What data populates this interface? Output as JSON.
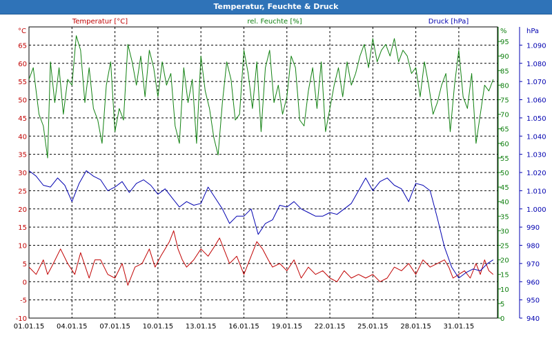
{
  "window": {
    "title": "Temperatur, Feuchte & Druck"
  },
  "chart_data": {
    "type": "line",
    "colors": {
      "temperature": "#c00000",
      "humidity": "#108010",
      "pressure": "#0000b0",
      "grid": "#000000"
    },
    "x_tick_labels": [
      "01.01.15",
      "04.01.15",
      "07.01.15",
      "10.01.15",
      "13.01.15",
      "16.01.15",
      "19.01.15",
      "22.01.15",
      "25.01.15",
      "28.01.15",
      "31.01.15"
    ],
    "x_range_days": [
      0,
      32.7
    ],
    "grid": true,
    "axes": {
      "temperature": {
        "label": "Temperatur [°C]",
        "unit": "°C",
        "ylim": [
          -10,
          70
        ],
        "ticks": [
          -10,
          -5,
          0,
          5,
          10,
          15,
          20,
          25,
          30,
          35,
          40,
          45,
          50,
          55,
          60,
          65
        ],
        "tick_labels": [
          "-10",
          "-5",
          "0",
          "5",
          "10",
          "15",
          "20",
          "25",
          "30",
          "35",
          "40",
          "45",
          "50",
          "55",
          "60",
          "65"
        ]
      },
      "humidity": {
        "label": "rel. Feuchte [%]",
        "unit": "%",
        "ylim": [
          0,
          100
        ],
        "ticks": [
          0,
          5,
          10,
          15,
          20,
          25,
          30,
          35,
          40,
          45,
          50,
          55,
          60,
          65,
          70,
          75,
          80,
          85,
          90,
          95
        ],
        "tick_labels": [
          "0",
          "5",
          "10",
          "15",
          "20",
          "25",
          "30",
          "35",
          "40",
          "45",
          "50",
          "55",
          "60",
          "65",
          "70",
          "75",
          "80",
          "85",
          "90",
          "95"
        ]
      },
      "pressure": {
        "label": "",
        "unit": "hPa",
        "ylim": [
          940,
          1100
        ],
        "ticks": [
          940,
          950,
          960,
          970,
          980,
          990,
          1000,
          1010,
          1020,
          1030,
          1040,
          1050,
          1060,
          1070,
          1080,
          1090
        ],
        "tick_labels": [
          "940",
          "950",
          "960",
          "970",
          "980",
          "990",
          "1.000",
          "1.010",
          "1.020",
          "1.030",
          "1.040",
          "1.050",
          "1.060",
          "1.070",
          "1.080",
          "1.090"
        ]
      }
    },
    "series": [
      {
        "name": "Temperatur [°C]",
        "axis": "temperature",
        "x": [
          0,
          0.5,
          1,
          1.3,
          1.7,
          2.2,
          2.7,
          3.2,
          3.6,
          4.2,
          4.6,
          5,
          5.5,
          6,
          6.5,
          6.9,
          7.4,
          7.9,
          8.4,
          8.8,
          9.2,
          9.5,
          9.8,
          10.1,
          10.4,
          10.7,
          11,
          11.5,
          12,
          12.5,
          13,
          13.3,
          13.6,
          14,
          14.5,
          15,
          15.5,
          15.9,
          16.3,
          16.7,
          17,
          17.5,
          18,
          18.5,
          19,
          19.5,
          20,
          20.5,
          21,
          21.5,
          22,
          22.5,
          23,
          23.5,
          24,
          24.5,
          25,
          25.5,
          26,
          26.5,
          27,
          27.5,
          28,
          28.5,
          29,
          29.3,
          29.6,
          30,
          30.4,
          30.8,
          31.2,
          31.5,
          31.8,
          32.1,
          32.4
        ],
        "y": [
          4,
          2,
          6,
          2,
          5,
          9,
          5,
          2,
          8,
          1,
          6,
          6,
          2,
          1,
          5,
          -1,
          4,
          5,
          9,
          4,
          7,
          9,
          11,
          14,
          9,
          6,
          4,
          6,
          9,
          7,
          10,
          12,
          9,
          5,
          7,
          2,
          7,
          11,
          9,
          6,
          4,
          5,
          3,
          6,
          1,
          4,
          2,
          3,
          1,
          0,
          3,
          1,
          2,
          1,
          2,
          0,
          1,
          4,
          3,
          5,
          2,
          6,
          4,
          5,
          6,
          4,
          1,
          2,
          3,
          1,
          5,
          2,
          6,
          3,
          2
        ]
      },
      {
        "name": "rel. Feuchte [%]",
        "axis": "humidity",
        "x": [
          0,
          0.3,
          0.7,
          1,
          1.3,
          1.5,
          1.8,
          2.1,
          2.4,
          2.7,
          3,
          3.3,
          3.6,
          3.9,
          4.2,
          4.5,
          4.8,
          5.1,
          5.4,
          5.7,
          6,
          6.3,
          6.6,
          6.9,
          7.2,
          7.5,
          7.8,
          8.1,
          8.4,
          8.7,
          9,
          9.3,
          9.6,
          9.9,
          10.2,
          10.5,
          10.8,
          11.1,
          11.4,
          11.7,
          12,
          12.3,
          12.6,
          12.9,
          13.2,
          13.5,
          13.8,
          14.1,
          14.4,
          14.7,
          15,
          15.3,
          15.6,
          15.9,
          16.2,
          16.5,
          16.8,
          17.1,
          17.4,
          17.7,
          18,
          18.3,
          18.6,
          18.9,
          19.2,
          19.5,
          19.8,
          20.1,
          20.4,
          20.7,
          21,
          21.3,
          21.6,
          21.9,
          22.2,
          22.5,
          22.8,
          23.1,
          23.4,
          23.7,
          24,
          24.3,
          24.6,
          24.9,
          25.2,
          25.5,
          25.8,
          26.1,
          26.4,
          26.7,
          27,
          27.3,
          27.6,
          27.9,
          28.2,
          28.5,
          28.8,
          29.1,
          29.4,
          29.7,
          30,
          30.3,
          30.6,
          30.9,
          31.2,
          31.5,
          31.8,
          32.1,
          32.4
        ],
        "y": [
          82,
          86,
          70,
          66,
          55,
          88,
          74,
          86,
          70,
          82,
          80,
          97,
          92,
          74,
          86,
          72,
          68,
          60,
          80,
          88,
          64,
          72,
          68,
          94,
          88,
          80,
          90,
          76,
          92,
          86,
          76,
          88,
          80,
          84,
          66,
          60,
          86,
          74,
          82,
          60,
          90,
          78,
          72,
          62,
          56,
          74,
          88,
          82,
          68,
          70,
          92,
          84,
          72,
          88,
          64,
          86,
          92,
          74,
          80,
          70,
          76,
          90,
          86,
          68,
          66,
          78,
          86,
          72,
          88,
          64,
          72,
          80,
          86,
          76,
          88,
          80,
          84,
          90,
          94,
          86,
          96,
          88,
          92,
          94,
          90,
          96,
          88,
          92,
          90,
          84,
          86,
          76,
          88,
          80,
          70,
          74,
          80,
          84,
          64,
          80,
          92,
          76,
          72,
          84,
          60,
          70,
          80,
          78,
          82
        ]
      },
      {
        "name": "Druck [hPa]",
        "axis": "pressure",
        "x": [
          0,
          0.5,
          1,
          1.5,
          2,
          2.5,
          3,
          3.5,
          4,
          4.5,
          5,
          5.5,
          6,
          6.5,
          7,
          7.5,
          8,
          8.5,
          9,
          9.5,
          10,
          10.5,
          11,
          11.5,
          12,
          12.5,
          13,
          13.5,
          14,
          14.5,
          15,
          15.5,
          16,
          16.5,
          17,
          17.5,
          18,
          18.5,
          19,
          19.5,
          20,
          20.5,
          21,
          21.5,
          22,
          22.5,
          23,
          23.5,
          24,
          24.5,
          25,
          25.5,
          26,
          26.5,
          27,
          27.5,
          28,
          28.5,
          29,
          29.5,
          30,
          30.5,
          31,
          31.5,
          32,
          32.4
        ],
        "y": [
          1021,
          1018,
          1013,
          1012,
          1017,
          1013,
          1004,
          1014,
          1021,
          1018,
          1016,
          1010,
          1012,
          1015,
          1009,
          1014,
          1016,
          1013,
          1008,
          1011,
          1006,
          1001,
          1004,
          1002,
          1003,
          1012,
          1006,
          1000,
          992,
          996,
          996,
          1000,
          986,
          992,
          994,
          1002,
          1001,
          1004,
          1000,
          998,
          996,
          996,
          998,
          997,
          1000,
          1003,
          1010,
          1017,
          1010,
          1015,
          1017,
          1013,
          1011,
          1004,
          1014,
          1013,
          1010,
          995,
          979,
          968,
          962,
          965,
          967,
          966,
          970,
          972
        ]
      }
    ]
  }
}
